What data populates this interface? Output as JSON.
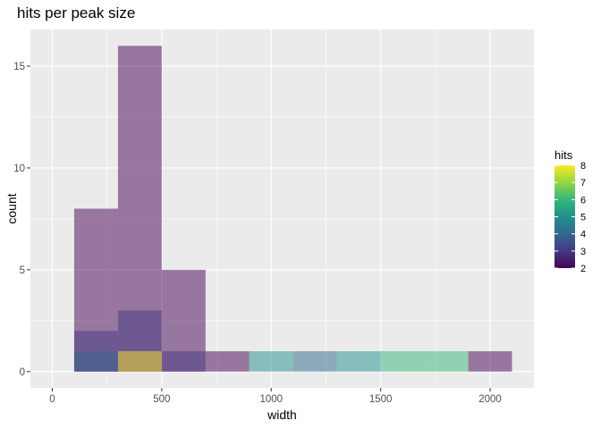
{
  "chart_data": {
    "type": "bar",
    "title": "hits per peak size",
    "xlabel": "width",
    "ylabel": "count",
    "xlim": [
      -100,
      2200
    ],
    "ylim": [
      -0.8,
      16.8
    ],
    "x_ticks": [
      0,
      500,
      1000,
      1500,
      2000
    ],
    "x_tick_labels": [
      "0",
      "500",
      "1000",
      "1500",
      "2000"
    ],
    "y_ticks": [
      0,
      5,
      10,
      15
    ],
    "y_tick_labels": [
      "0",
      "5",
      "10",
      "15"
    ],
    "grid": true,
    "bin_width": 200,
    "bar_opacity": 0.5,
    "legend": {
      "title": "hits",
      "position": "right",
      "range": [
        2,
        8
      ],
      "tick_labels": [
        "2",
        "3",
        "4",
        "5",
        "6",
        "7",
        "8"
      ],
      "colors": [
        "#440154",
        "#443983",
        "#31688e",
        "#21918c",
        "#35b779",
        "#90d743",
        "#fde725"
      ]
    },
    "series": [
      {
        "hits": 2,
        "color": "#440154",
        "bins": [
          {
            "x": 200,
            "count": 8
          },
          {
            "x": 400,
            "count": 16
          },
          {
            "x": 600,
            "count": 5
          },
          {
            "x": 800,
            "count": 1
          },
          {
            "x": 2000,
            "count": 1
          }
        ]
      },
      {
        "hits": 3,
        "color": "#443983",
        "bins": [
          {
            "x": 200,
            "count": 2
          },
          {
            "x": 400,
            "count": 3
          },
          {
            "x": 600,
            "count": 1
          }
        ]
      },
      {
        "hits": 4,
        "color": "#31688e",
        "bins": [
          {
            "x": 200,
            "count": 1
          },
          {
            "x": 1200,
            "count": 1
          }
        ]
      },
      {
        "hits": 5,
        "color": "#21918c",
        "bins": [
          {
            "x": 1000,
            "count": 1
          },
          {
            "x": 1400,
            "count": 1
          }
        ]
      },
      {
        "hits": 6,
        "color": "#35b779",
        "bins": [
          {
            "x": 1600,
            "count": 1
          },
          {
            "x": 1800,
            "count": 1
          }
        ]
      },
      {
        "hits": 8,
        "color": "#fde725",
        "bins": [
          {
            "x": 400,
            "count": 1
          }
        ]
      }
    ]
  }
}
